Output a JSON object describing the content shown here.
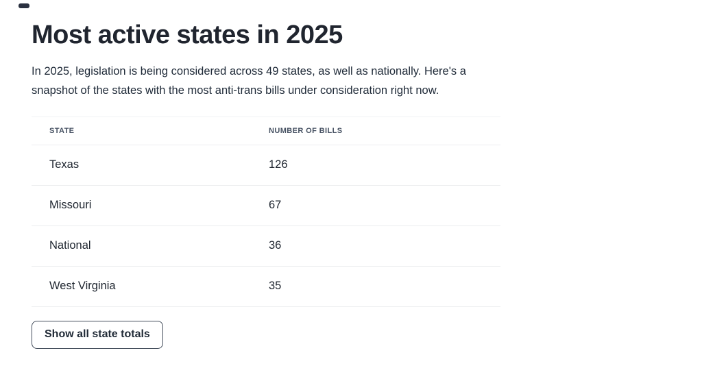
{
  "page": {
    "title": "Most active states in 2025",
    "intro_lines": [
      "In 2025, legislation is being considered across 49 states, as well as nationally. Here's a",
      "snapshot of the states with the most anti-trans bills under consideration right now."
    ],
    "intro_full": "In 2025, legislation is being considered across 49 states, as well as nationally. Here's a snapshot of the states with the most anti-trans bills under consideration right now."
  },
  "table": {
    "headers": [
      "STATE",
      "NUMBER OF BILLS"
    ],
    "rows": [
      {
        "state": "Texas",
        "bills": "126"
      },
      {
        "state": "Missouri",
        "bills": "67"
      },
      {
        "state": "National",
        "bills": "36"
      },
      {
        "state": "West Virginia",
        "bills": "35"
      }
    ]
  },
  "button": {
    "label": "Show all state totals"
  },
  "chart_data": {
    "type": "table",
    "title": "Most active states in 2025",
    "categories": [
      "Texas",
      "Missouri",
      "National",
      "West Virginia"
    ],
    "values": [
      126,
      67,
      36,
      35
    ],
    "columns": [
      "STATE",
      "NUMBER OF BILLS"
    ]
  },
  "colors": {
    "background": "#ffffff",
    "title_text": "#20252f",
    "body_text": "#202b39",
    "table_header_text": "#475263",
    "row_text": "#1d242e",
    "divider": "#ecedef",
    "button_border": "#414b59",
    "button_text": "#202a36"
  }
}
